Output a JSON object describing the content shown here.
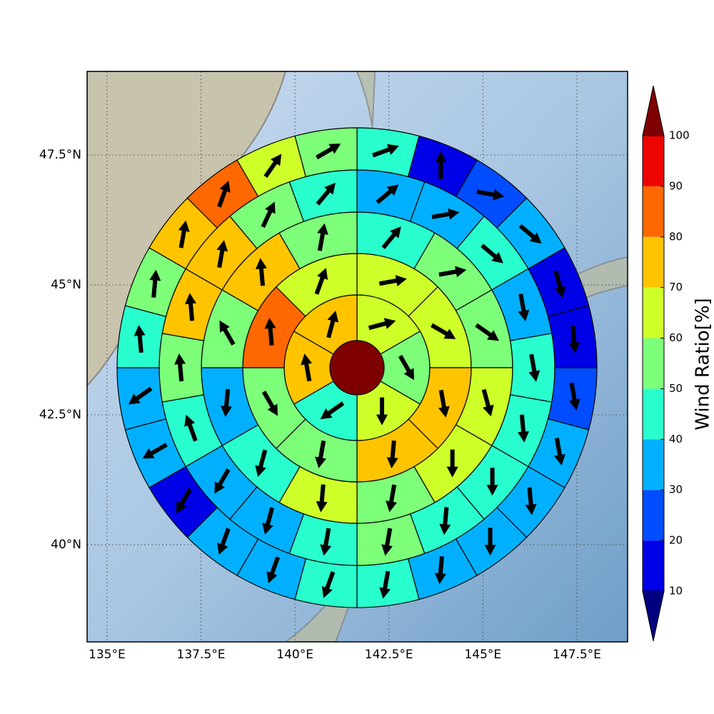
{
  "chart_data": {
    "type": "polar_sector_map",
    "xlim": [
      134.47,
      148.85
    ],
    "ylim": [
      38.13,
      49.11
    ],
    "xticks": [
      {
        "value": 135,
        "label": "135°E"
      },
      {
        "value": 137.5,
        "label": "137.5°E"
      },
      {
        "value": 140,
        "label": "140°E"
      },
      {
        "value": 142.5,
        "label": "142.5°E"
      },
      {
        "value": 145,
        "label": "145°E"
      },
      {
        "value": 147.5,
        "label": "147.5°E"
      }
    ],
    "yticks": [
      {
        "value": 40,
        "label": "40°N"
      },
      {
        "value": 42.5,
        "label": "42.5°N"
      },
      {
        "value": 45,
        "label": "45°N"
      },
      {
        "value": 47.5,
        "label": "47.5°N"
      }
    ],
    "grid": true,
    "center_value": 105,
    "rings": [
      {
        "values": [
          65,
          55,
          65,
          45,
          75,
          75
        ],
        "directions": [
          75,
          150,
          180,
          235,
          350,
          15
        ]
      },
      {
        "values": [
          65,
          65,
          75,
          75,
          55,
          55,
          85,
          65
        ],
        "directions": [
          80,
          120,
          170,
          185,
          190,
          150,
          355,
          20
        ]
      },
      {
        "values": [
          45,
          55,
          55,
          65,
          65,
          55,
          65,
          45,
          35,
          55,
          75,
          55
        ],
        "directions": [
          40,
          80,
          125,
          165,
          180,
          190,
          185,
          195,
          185,
          330,
          355,
          10
        ]
      },
      {
        "values": [
          35,
          35,
          45,
          35,
          45,
          45,
          45,
          45,
          55,
          45,
          35,
          35,
          45,
          55,
          75,
          75,
          55,
          45
        ],
        "directions": [
          50,
          80,
          130,
          170,
          170,
          175,
          180,
          185,
          190,
          190,
          195,
          210,
          340,
          355,
          355,
          10,
          25,
          40
        ]
      },
      {
        "values": [
          45,
          15,
          25,
          35,
          15,
          15,
          25,
          35,
          35,
          35,
          35,
          45,
          45,
          35,
          35,
          15,
          35,
          35,
          45,
          55,
          75,
          85,
          65,
          55
        ],
        "directions": [
          70,
          0,
          100,
          130,
          165,
          175,
          170,
          170,
          175,
          180,
          185,
          190,
          200,
          200,
          200,
          210,
          240,
          235,
          355,
          5,
          10,
          20,
          35,
          60
        ]
      }
    ],
    "colorbar": {
      "label": "Wind Ratio[%]",
      "levels": [
        10,
        20,
        30,
        40,
        50,
        60,
        70,
        80,
        90,
        100
      ],
      "colors": [
        "#0000e6",
        "#004cff",
        "#00b0ff",
        "#29ffce",
        "#7dff7a",
        "#ceff29",
        "#ffc400",
        "#ff6800",
        "#ed0400"
      ],
      "under_color": "#00007f",
      "over_color": "#7f0000"
    }
  }
}
